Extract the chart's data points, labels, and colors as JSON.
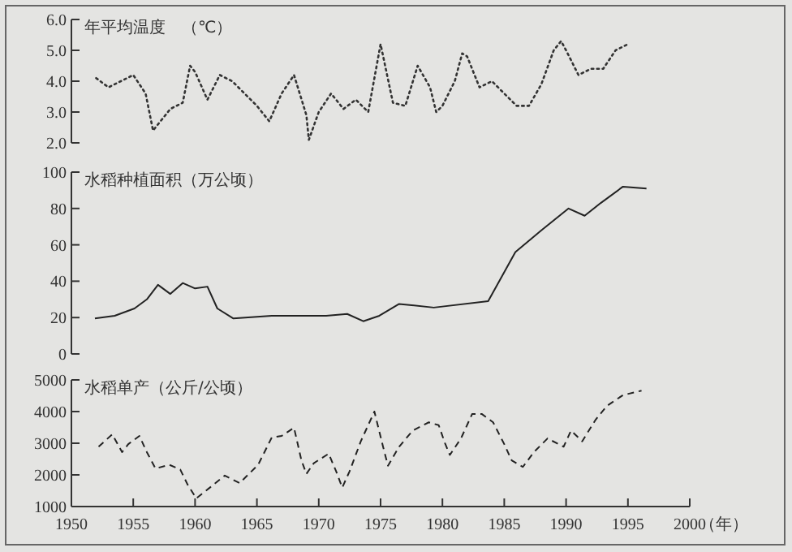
{
  "chart_data": [
    {
      "type": "line",
      "title": "年平均温度　（℃）",
      "xlim": [
        1950,
        2000
      ],
      "ylim": [
        2,
        6
      ],
      "yticks": [
        {
          "value": 2,
          "label": "2.0"
        },
        {
          "value": 3,
          "label": "3.0"
        },
        {
          "value": 4,
          "label": "4.0"
        },
        {
          "value": 5,
          "label": "5.0"
        },
        {
          "value": 6,
          "label": "6.0"
        }
      ],
      "tick_labels": "y",
      "marker": "none",
      "line_style": "dotted",
      "color": "#333333",
      "x": [
        1952,
        1953,
        1954,
        1955,
        1956,
        1956.6,
        1957,
        1958,
        1959,
        1959.6,
        1960,
        1961,
        1962,
        1963,
        1964,
        1965,
        1966,
        1967,
        1968,
        1969,
        1969.2,
        1970,
        1971,
        1972,
        1973,
        1974,
        1975,
        1976,
        1977,
        1978,
        1979,
        1979.5,
        1980,
        1981,
        1981.6,
        1982,
        1983,
        1984,
        1985,
        1986,
        1987,
        1988,
        1989,
        1989.6,
        1990,
        1991,
        1992,
        1993,
        1994,
        1995
      ],
      "values": [
        4.1,
        3.8,
        4.0,
        4.2,
        3.6,
        2.4,
        2.6,
        3.1,
        3.3,
        4.5,
        4.3,
        3.4,
        4.2,
        4.0,
        3.6,
        3.2,
        2.7,
        3.6,
        4.2,
        2.9,
        2.1,
        3.0,
        3.6,
        3.1,
        3.4,
        3.0,
        5.2,
        3.3,
        3.2,
        4.5,
        3.8,
        3.0,
        3.2,
        4.0,
        4.9,
        4.8,
        3.8,
        4.0,
        3.6,
        3.2,
        3.2,
        3.9,
        5.0,
        5.3,
        5.0,
        4.2,
        4.4,
        4.4,
        5.0,
        5.2
      ]
    },
    {
      "type": "line",
      "title": "水稻种植面积（万公顷）",
      "xlim": [
        1950,
        2000
      ],
      "ylim": [
        0,
        100
      ],
      "yticks": [
        0,
        20,
        40,
        60,
        80,
        100
      ],
      "tick_labels": "y",
      "marker": "none",
      "line_style": "solid",
      "color": "#222222",
      "x": [
        1951.9,
        1953.5,
        1955.1,
        1956.1,
        1957,
        1958,
        1959,
        1960,
        1961,
        1961.8,
        1963.1,
        1966.2,
        1970.6,
        1972.3,
        1973.6,
        1974.9,
        1976.5,
        1979.3,
        1983.7,
        1985.9,
        1988,
        1990.2,
        1991.5,
        1992.8,
        1994.6,
        1996.5
      ],
      "values": [
        19.5,
        21,
        25,
        30,
        38,
        33,
        39,
        36,
        37,
        25,
        19.5,
        21,
        21,
        22,
        18,
        21,
        27.5,
        25.5,
        29,
        56,
        68,
        80,
        76,
        83,
        92,
        91
      ]
    },
    {
      "type": "line",
      "title": "水稻单产（公斤/公顷）",
      "xlabel": "（年）",
      "xlim": [
        1950,
        2000
      ],
      "xticks": [
        1950,
        1955,
        1960,
        1965,
        1970,
        1975,
        1980,
        1985,
        1990,
        1995,
        2000
      ],
      "ylim": [
        1000,
        5000
      ],
      "yticks": [
        1000,
        2000,
        3000,
        4000,
        5000
      ],
      "marker": "none",
      "line_style": "dashed",
      "color": "#222222",
      "x": [
        1952.2,
        1953.3,
        1954.1,
        1954.6,
        1955.5,
        1956.1,
        1956.8,
        1957.9,
        1958.8,
        1959.4,
        1960.1,
        1961.2,
        1962.4,
        1963.6,
        1965.1,
        1966.2,
        1967,
        1968,
        1968.6,
        1969,
        1969.6,
        1970.8,
        1971.4,
        1971.9,
        1972.5,
        1973.4,
        1974.5,
        1975.2,
        1975.6,
        1976.5,
        1977.6,
        1978.9,
        1979.7,
        1980.2,
        1980.6,
        1981.5,
        1982.4,
        1983.2,
        1984.1,
        1985,
        1985.6,
        1986.5,
        1987.4,
        1988.5,
        1989.8,
        1990.4,
        1991.3,
        1992.4,
        1993.3,
        1994.6,
        1996.1
      ],
      "values": [
        2890,
        3280,
        2720,
        2970,
        3230,
        2720,
        2200,
        2320,
        2170,
        1690,
        1260,
        1600,
        1980,
        1740,
        2320,
        3180,
        3230,
        3490,
        2460,
        2030,
        2370,
        2670,
        2120,
        1600,
        2120,
        3060,
        4000,
        2890,
        2290,
        2890,
        3400,
        3660,
        3570,
        3010,
        2630,
        3150,
        3920,
        3920,
        3660,
        2970,
        2460,
        2250,
        2720,
        3150,
        2890,
        3400,
        3060,
        3750,
        4180,
        4520,
        4660
      ]
    }
  ]
}
